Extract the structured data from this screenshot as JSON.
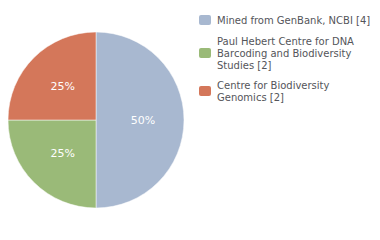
{
  "chart_data": {
    "type": "pie",
    "categories": [
      "Mined from GenBank, NCBI [4]",
      "Paul Hebert Centre for DNA\nBarcoding and Biodiversity\nStudies [2]",
      "Centre for Biodiversity\nGenomics [2]"
    ],
    "values": [
      50,
      25,
      25
    ],
    "value_labels": [
      "50%",
      "25%",
      "25%"
    ],
    "data_labels": true,
    "colors": [
      "#a8b8d0",
      "#9aba78",
      "#d4775a"
    ],
    "legend": "upper right"
  }
}
